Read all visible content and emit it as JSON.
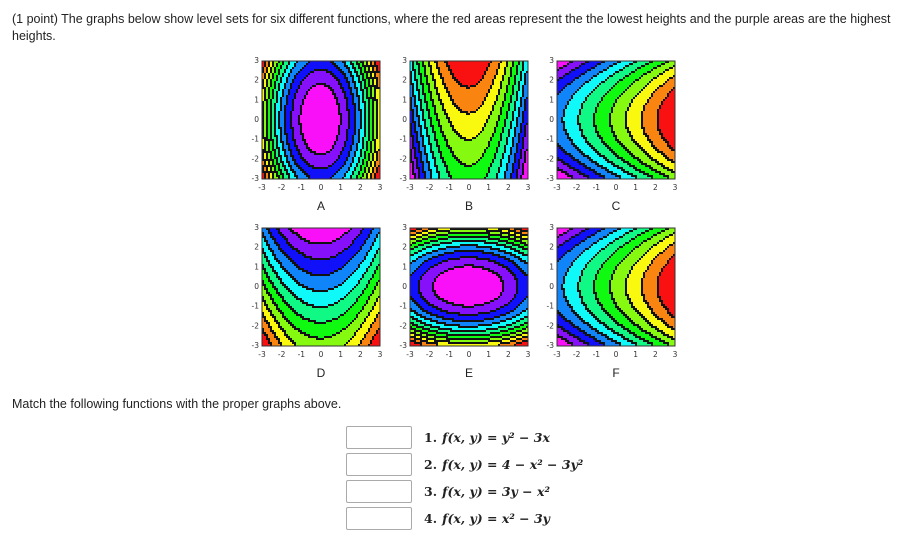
{
  "problem": {
    "points": "(1 point)",
    "text": "The graphs below show level sets for six different functions, where the red areas represent the the lowest heights and the purple areas are the highest heights."
  },
  "graphs": [
    {
      "label": "A"
    },
    {
      "label": "B"
    },
    {
      "label": "C"
    },
    {
      "label": "D"
    },
    {
      "label": "E"
    },
    {
      "label": "F"
    }
  ],
  "axis_ticks": [
    "-3",
    "-2",
    "-1",
    "0",
    "1",
    "2",
    "3"
  ],
  "instruction": "Match the following functions with the proper graphs above.",
  "functions": [
    {
      "number": "1.",
      "formula": "f(x, y) = y² − 3x"
    },
    {
      "number": "2.",
      "formula": "f(x, y) = 4 − x² − 3y²"
    },
    {
      "number": "3.",
      "formula": "f(x, y) = 3y − x²"
    },
    {
      "number": "4.",
      "formula": "f(x, y) = x² − 3y"
    }
  ]
}
